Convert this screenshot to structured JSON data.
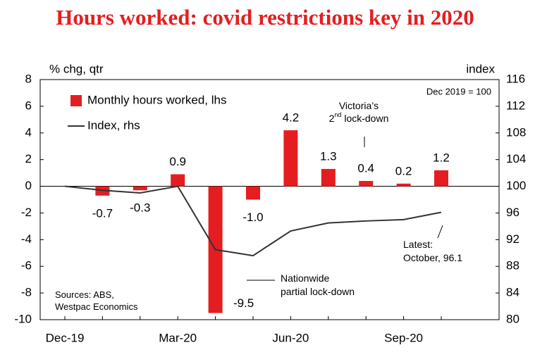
{
  "chart_data": {
    "type": "bar-line",
    "title": "Hours worked: covid restrictions key in 2020",
    "y_label": "% chg, qtr",
    "y2_label": "index",
    "base_note": "Dec 2019 = 100",
    "victoria_note": [
      "Victoria’s",
      "2",
      "nd",
      " lock-down"
    ],
    "nationwide_note": [
      "Nationwide",
      "partial lock-down"
    ],
    "latest_note": [
      "Latest:",
      "October, 96.1"
    ],
    "sources": [
      "Sources:  ABS,",
      "Westpac Economics"
    ],
    "categories": [
      "Dec-19",
      null,
      null,
      "Mar-20",
      null,
      null,
      "Jun-20",
      null,
      null,
      "Sep-20",
      null
    ],
    "series": [
      {
        "name": "Monthly hours worked, lhs",
        "color": "#e41e20",
        "type": "bar",
        "values": [
          null,
          -0.7,
          -0.3,
          0.9,
          -9.5,
          -1.0,
          4.2,
          1.3,
          0.4,
          0.2,
          1.2
        ],
        "value_labels": [
          null,
          "-0.7",
          "-0.3",
          "0.9",
          "-9.5",
          "-1.0",
          "4.2",
          "1.3",
          "0.4",
          "0.2",
          "1.2"
        ]
      },
      {
        "name": "Index, rhs",
        "color": "#333333",
        "type": "line",
        "axis": "y2",
        "values": [
          100,
          99.4,
          99.0,
          100,
          90.5,
          89.6,
          93.3,
          94.5,
          94.8,
          95.0,
          96.1
        ]
      }
    ],
    "ylim": [
      -10,
      8
    ],
    "yticks": [
      -10,
      -8,
      -6,
      -4,
      -2,
      0,
      2,
      4,
      6,
      8
    ],
    "y2lim": [
      80,
      116
    ],
    "y2ticks": [
      80,
      84,
      88,
      92,
      96,
      100,
      104,
      108,
      112,
      116
    ],
    "legend": "top-left"
  }
}
